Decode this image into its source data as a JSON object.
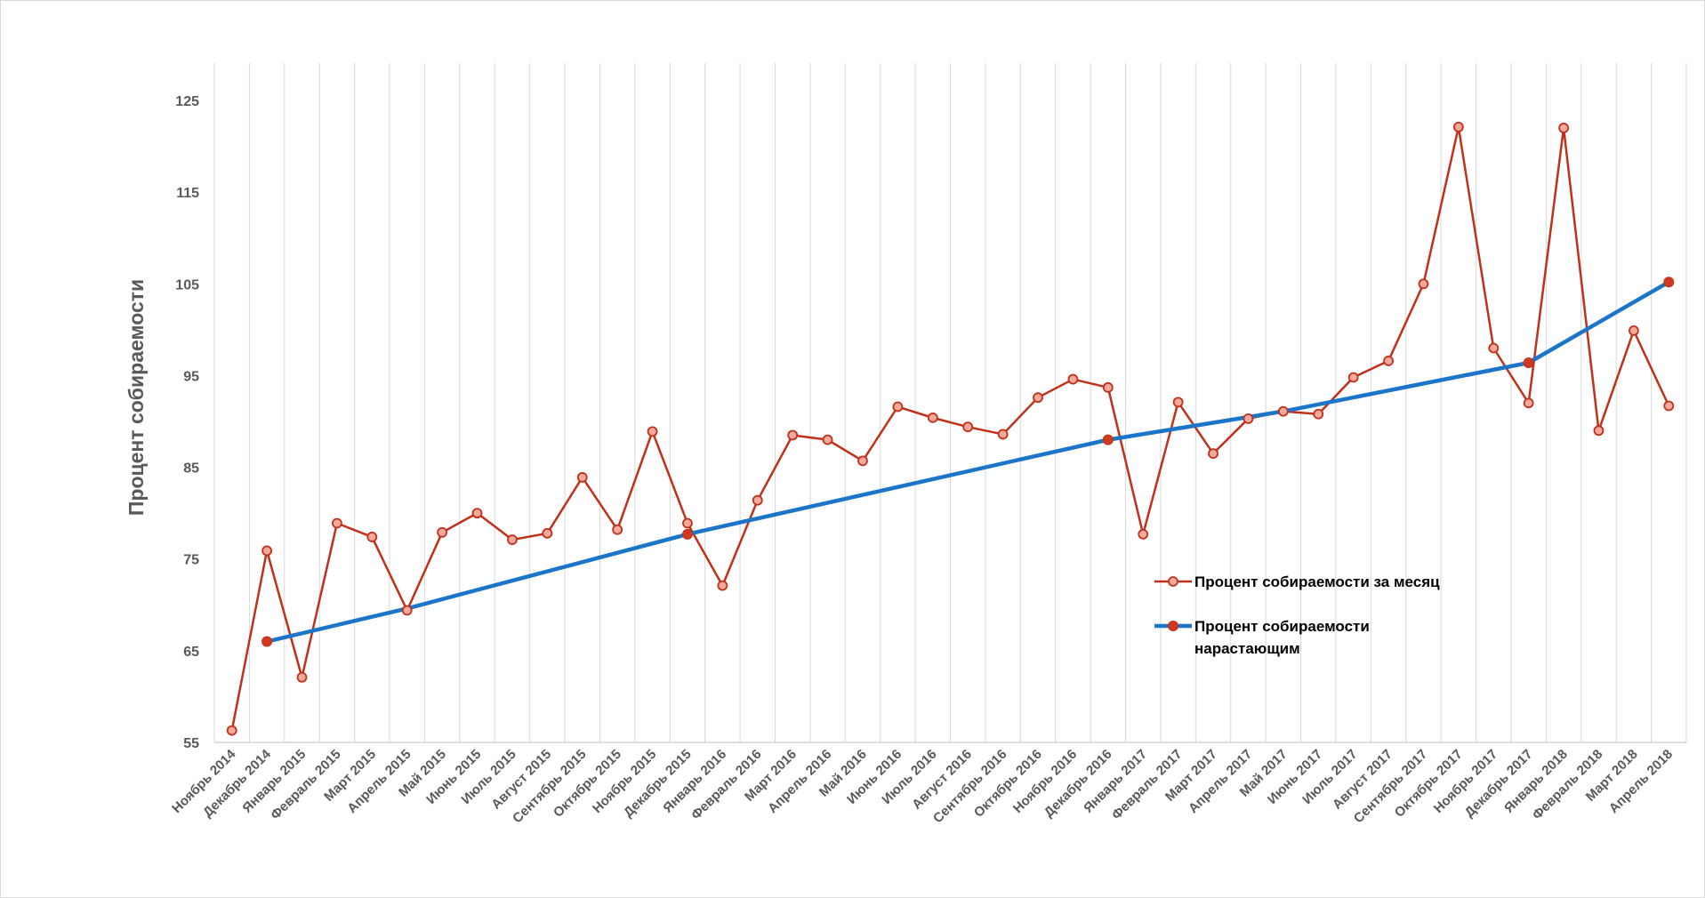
{
  "chart_data": {
    "type": "line",
    "title": "",
    "xlabel": "",
    "ylabel": "Процент собираемости",
    "ylim": [
      55,
      125
    ],
    "yticks": [
      55,
      65,
      75,
      85,
      95,
      105,
      115,
      125
    ],
    "grid": "vertical",
    "legend_position": "right-middle",
    "categories": [
      "Ноябрь 2014",
      "Декабрь 2014",
      "Январь 2015",
      "Февраль 2015",
      "Март 2015",
      "Апрель 2015",
      "Май 2015",
      "Июнь 2015",
      "Июль 2015",
      "Август 2015",
      "Сентябрь 2015",
      "Октябрь 2015",
      "Ноябрь 2015",
      "Декабрь 2015",
      "Январь 2016",
      "Февраль 2016",
      "Март 2016",
      "Апрель 2016",
      "Май 2016",
      "Июнь 2016",
      "Июль 2016",
      "Август 2016",
      "Сентябрь 2016",
      "Октябрь 2016",
      "Ноябрь 2016",
      "Декабрь 2016",
      "Январь 2017",
      "Февраль 2017",
      "Март 2017",
      "Апрель 2017",
      "Май 2017",
      "Июнь 2017",
      "Июль 2017",
      "Август 2017",
      "Сентябрь 2017",
      "Октябрь 2017",
      "Ноябрь 2017",
      "Декабрь 2017",
      "Январь 2018",
      "Февраль 2018",
      "Март 2018",
      "Апрель 2018"
    ],
    "series": [
      {
        "name": "Процент собираемости за месяц",
        "color": "#c0301a",
        "marker_fill": "#f4a99a",
        "values": [
          56.3,
          75.9,
          62.1,
          78.9,
          77.4,
          69.4,
          77.9,
          80.0,
          77.1,
          77.8,
          83.9,
          78.2,
          88.9,
          78.9,
          72.1,
          81.4,
          88.5,
          88.0,
          85.7,
          91.6,
          90.4,
          89.4,
          88.6,
          92.6,
          94.6,
          93.7,
          77.7,
          92.1,
          86.5,
          90.3,
          91.1,
          90.8,
          94.8,
          96.6,
          105.0,
          122.1,
          98.0,
          92.0,
          122.0,
          89.0,
          99.9,
          91.7
        ]
      },
      {
        "name": "Процент собираемости нарастающим",
        "color": "#1b75c9",
        "marker_fill": "#d0391d",
        "points": [
          {
            "category": "Декабрь 2014",
            "value": 66.0,
            "marker": true
          },
          {
            "category": "Апрель 2015",
            "value": 69.6,
            "marker": false
          },
          {
            "category": "Декабрь 2015",
            "value": 77.7,
            "marker": true
          },
          {
            "category": "Декабрь 2016",
            "value": 88.0,
            "marker": true
          },
          {
            "category": "Май 2017",
            "value": 91.1,
            "marker": false
          },
          {
            "category": "Декабрь 2017",
            "value": 96.4,
            "marker": true
          },
          {
            "category": "Апрель 2018",
            "value": 105.2,
            "marker": true
          }
        ]
      }
    ]
  }
}
